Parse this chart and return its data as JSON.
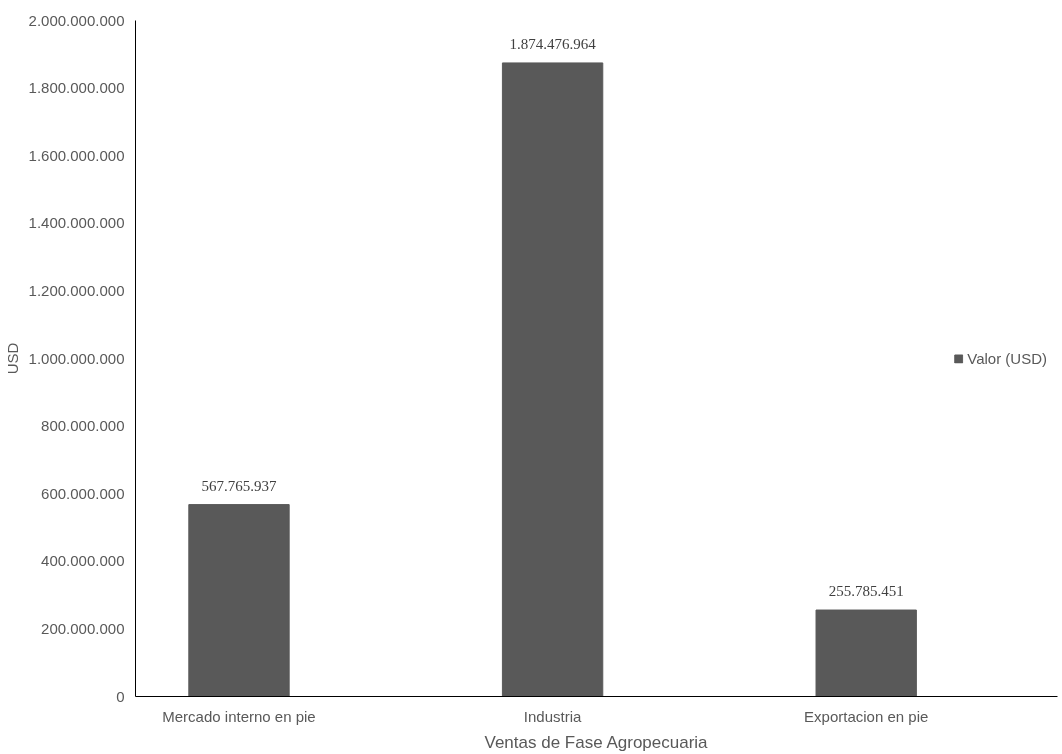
{
  "chart_data": {
    "type": "bar",
    "xlabel": "Ventas de Fase Agropecuaria",
    "ylabel": "USD",
    "categories": [
      "Mercado interno en pie",
      "Industria",
      "Exportacion en pie"
    ],
    "series": [
      {
        "name": "Valor (USD)",
        "color": "#595959",
        "values": [
          567765937,
          1874476964,
          255785451
        ],
        "value_labels": [
          "567.765.937",
          "1.874.476.964",
          "255.785.451"
        ]
      }
    ],
    "ylim": [
      0,
      2000000000
    ],
    "yticks": [
      {
        "value": 0,
        "label": "0"
      },
      {
        "value": 200000000,
        "label": "200.000.000"
      },
      {
        "value": 400000000,
        "label": "400.000.000"
      },
      {
        "value": 600000000,
        "label": "600.000.000"
      },
      {
        "value": 800000000,
        "label": "800.000.000"
      },
      {
        "value": 1000000000,
        "label": "1.000.000.000"
      },
      {
        "value": 1200000000,
        "label": "1.200.000.000"
      },
      {
        "value": 1400000000,
        "label": "1.400.000.000"
      },
      {
        "value": 1600000000,
        "label": "1.600.000.000"
      },
      {
        "value": 1800000000,
        "label": "1.800.000.000"
      },
      {
        "value": 2000000000,
        "label": "2.000.000.000"
      }
    ],
    "grid": false,
    "legend": "right"
  }
}
